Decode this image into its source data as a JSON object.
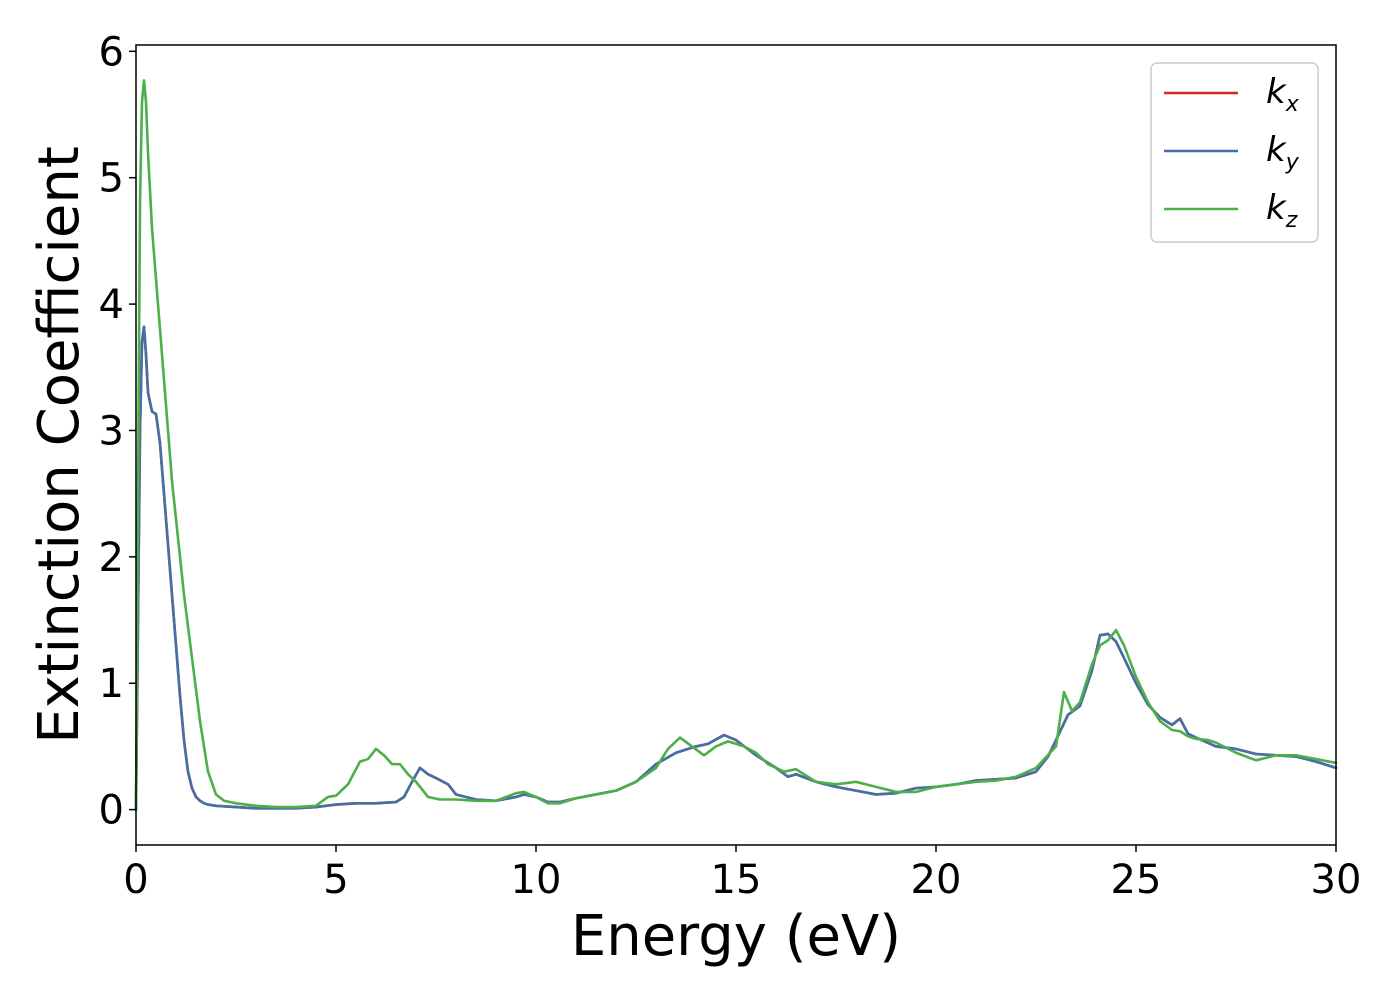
{
  "chart_data": {
    "type": "line",
    "xlabel": "Energy (eV)",
    "ylabel": "Extinction Coefficient",
    "xlim": [
      0,
      30
    ],
    "ylim": [
      -0.28,
      6.05
    ],
    "xticks": [
      0,
      5,
      10,
      15,
      20,
      25,
      30
    ],
    "yticks": [
      0,
      1,
      2,
      3,
      4,
      5,
      6
    ],
    "grid": false,
    "legend_position": "top-right",
    "series": [
      {
        "name": "k_x",
        "label_main": "k",
        "label_sub": "x",
        "color": "#d62728",
        "x": [
          0,
          0.05,
          0.1,
          0.15,
          0.2,
          0.25,
          0.3,
          0.4,
          0.5,
          0.6,
          0.7,
          0.8,
          0.9,
          1.0,
          1.1,
          1.2,
          1.3,
          1.4,
          1.5,
          1.6,
          1.7,
          1.8,
          2.0,
          2.5,
          3.0,
          3.5,
          4.0,
          4.5,
          5.0,
          5.5,
          6.0,
          6.5,
          6.7,
          6.9,
          7.1,
          7.3,
          7.5,
          7.8,
          8.0,
          8.5,
          9.0,
          9.5,
          9.7,
          10.0,
          10.3,
          10.6,
          11.0,
          11.5,
          12.0,
          12.5,
          13.0,
          13.5,
          14.0,
          14.3,
          14.7,
          15.0,
          15.5,
          16.0,
          16.3,
          16.5,
          17.0,
          17.5,
          18.0,
          18.5,
          19.0,
          19.5,
          20.0,
          20.5,
          21.0,
          21.5,
          22.0,
          22.5,
          22.8,
          23.0,
          23.3,
          23.6,
          23.9,
          24.1,
          24.3,
          24.5,
          24.7,
          25.0,
          25.3,
          25.6,
          25.9,
          26.1,
          26.3,
          26.5,
          27.0,
          27.5,
          28.0,
          28.5,
          29.0,
          29.5,
          30.0
        ],
        "y": [
          0.0,
          1.5,
          3.0,
          3.7,
          3.82,
          3.6,
          3.3,
          3.15,
          3.13,
          2.9,
          2.5,
          2.1,
          1.7,
          1.3,
          0.9,
          0.55,
          0.3,
          0.17,
          0.1,
          0.07,
          0.05,
          0.04,
          0.03,
          0.02,
          0.01,
          0.01,
          0.01,
          0.02,
          0.04,
          0.05,
          0.05,
          0.06,
          0.1,
          0.22,
          0.33,
          0.28,
          0.25,
          0.2,
          0.12,
          0.08,
          0.07,
          0.1,
          0.12,
          0.1,
          0.06,
          0.06,
          0.09,
          0.12,
          0.15,
          0.22,
          0.36,
          0.45,
          0.5,
          0.52,
          0.59,
          0.55,
          0.43,
          0.33,
          0.26,
          0.28,
          0.22,
          0.18,
          0.15,
          0.12,
          0.13,
          0.17,
          0.18,
          0.2,
          0.23,
          0.24,
          0.25,
          0.3,
          0.42,
          0.55,
          0.75,
          0.82,
          1.1,
          1.38,
          1.39,
          1.33,
          1.2,
          1.0,
          0.83,
          0.73,
          0.67,
          0.72,
          0.6,
          0.57,
          0.5,
          0.48,
          0.44,
          0.43,
          0.42,
          0.38,
          0.33
        ]
      },
      {
        "name": "k_y",
        "label_main": "k",
        "label_sub": "y",
        "color": "#4470a8",
        "x": [
          0,
          0.05,
          0.1,
          0.15,
          0.2,
          0.25,
          0.3,
          0.4,
          0.5,
          0.6,
          0.7,
          0.8,
          0.9,
          1.0,
          1.1,
          1.2,
          1.3,
          1.4,
          1.5,
          1.6,
          1.7,
          1.8,
          2.0,
          2.5,
          3.0,
          3.5,
          4.0,
          4.5,
          5.0,
          5.5,
          6.0,
          6.5,
          6.7,
          6.9,
          7.1,
          7.3,
          7.5,
          7.8,
          8.0,
          8.5,
          9.0,
          9.5,
          9.7,
          10.0,
          10.3,
          10.6,
          11.0,
          11.5,
          12.0,
          12.5,
          13.0,
          13.5,
          14.0,
          14.3,
          14.7,
          15.0,
          15.5,
          16.0,
          16.3,
          16.5,
          17.0,
          17.5,
          18.0,
          18.5,
          19.0,
          19.5,
          20.0,
          20.5,
          21.0,
          21.5,
          22.0,
          22.5,
          22.8,
          23.0,
          23.3,
          23.6,
          23.9,
          24.1,
          24.3,
          24.5,
          24.7,
          25.0,
          25.3,
          25.6,
          25.9,
          26.1,
          26.3,
          26.5,
          27.0,
          27.5,
          28.0,
          28.5,
          29.0,
          29.5,
          30.0
        ],
        "y": [
          0.0,
          1.5,
          3.0,
          3.7,
          3.82,
          3.6,
          3.3,
          3.15,
          3.13,
          2.9,
          2.5,
          2.1,
          1.7,
          1.3,
          0.9,
          0.55,
          0.3,
          0.17,
          0.1,
          0.07,
          0.05,
          0.04,
          0.03,
          0.02,
          0.01,
          0.01,
          0.01,
          0.02,
          0.04,
          0.05,
          0.05,
          0.06,
          0.1,
          0.22,
          0.33,
          0.28,
          0.25,
          0.2,
          0.12,
          0.08,
          0.07,
          0.1,
          0.12,
          0.1,
          0.06,
          0.06,
          0.09,
          0.12,
          0.15,
          0.22,
          0.36,
          0.45,
          0.5,
          0.52,
          0.59,
          0.55,
          0.43,
          0.33,
          0.26,
          0.28,
          0.22,
          0.18,
          0.15,
          0.12,
          0.13,
          0.17,
          0.18,
          0.2,
          0.23,
          0.24,
          0.25,
          0.3,
          0.42,
          0.55,
          0.75,
          0.82,
          1.1,
          1.38,
          1.39,
          1.33,
          1.2,
          1.0,
          0.83,
          0.73,
          0.67,
          0.72,
          0.6,
          0.57,
          0.5,
          0.48,
          0.44,
          0.43,
          0.42,
          0.38,
          0.33
        ]
      },
      {
        "name": "k_z",
        "label_main": "k",
        "label_sub": "z",
        "color": "#4daf4a",
        "x": [
          0,
          0.05,
          0.1,
          0.15,
          0.2,
          0.25,
          0.3,
          0.4,
          0.5,
          0.6,
          0.7,
          0.8,
          0.9,
          1.0,
          1.2,
          1.4,
          1.6,
          1.8,
          2.0,
          2.2,
          2.5,
          3.0,
          3.5,
          4.0,
          4.5,
          4.8,
          5.0,
          5.3,
          5.6,
          5.8,
          6.0,
          6.2,
          6.4,
          6.6,
          6.8,
          7.0,
          7.3,
          7.6,
          8.0,
          8.5,
          9.0,
          9.5,
          9.7,
          10.0,
          10.3,
          10.6,
          11.0,
          11.5,
          12.0,
          12.5,
          13.0,
          13.3,
          13.6,
          13.9,
          14.2,
          14.5,
          14.8,
          15.2,
          15.5,
          15.8,
          16.2,
          16.5,
          17.0,
          17.5,
          18.0,
          18.5,
          19.0,
          19.5,
          20.0,
          20.5,
          21.0,
          21.5,
          22.0,
          22.5,
          23.0,
          23.2,
          23.4,
          23.6,
          23.9,
          24.1,
          24.3,
          24.5,
          24.7,
          25.0,
          25.3,
          25.6,
          25.9,
          26.1,
          26.3,
          26.5,
          26.8,
          27.0,
          27.5,
          28.0,
          28.5,
          29.0,
          29.5,
          30.0
        ],
        "y": [
          0.0,
          2.5,
          4.8,
          5.6,
          5.77,
          5.6,
          5.2,
          4.6,
          4.2,
          3.8,
          3.4,
          3.0,
          2.6,
          2.3,
          1.7,
          1.2,
          0.7,
          0.3,
          0.12,
          0.07,
          0.05,
          0.03,
          0.02,
          0.02,
          0.03,
          0.1,
          0.11,
          0.2,
          0.38,
          0.4,
          0.48,
          0.43,
          0.36,
          0.36,
          0.28,
          0.22,
          0.1,
          0.08,
          0.08,
          0.07,
          0.07,
          0.13,
          0.14,
          0.1,
          0.05,
          0.05,
          0.09,
          0.12,
          0.15,
          0.22,
          0.33,
          0.48,
          0.57,
          0.5,
          0.43,
          0.5,
          0.54,
          0.5,
          0.45,
          0.36,
          0.3,
          0.32,
          0.22,
          0.2,
          0.22,
          0.18,
          0.14,
          0.14,
          0.18,
          0.2,
          0.22,
          0.23,
          0.26,
          0.33,
          0.5,
          0.93,
          0.78,
          0.85,
          1.15,
          1.3,
          1.34,
          1.42,
          1.3,
          1.05,
          0.85,
          0.7,
          0.63,
          0.62,
          0.58,
          0.56,
          0.55,
          0.53,
          0.45,
          0.39,
          0.43,
          0.43,
          0.4,
          0.37
        ]
      }
    ]
  }
}
